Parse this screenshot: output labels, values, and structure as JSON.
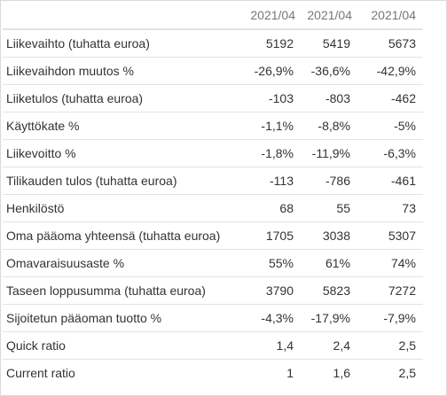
{
  "table": {
    "columns": [
      "2021/04",
      "2021/04",
      "2021/04"
    ],
    "rows": [
      {
        "label": "Liikevaihto (tuhatta euroa)",
        "values": [
          "5192",
          "5419",
          "5673"
        ]
      },
      {
        "label": "Liikevaihdon muutos %",
        "values": [
          "-26,9%",
          "-36,6%",
          "-42,9%"
        ]
      },
      {
        "label": "Liiketulos (tuhatta euroa)",
        "values": [
          "-103",
          "-803",
          "-462"
        ]
      },
      {
        "label": "Käyttökate %",
        "values": [
          "-1,1%",
          "-8,8%",
          "-5%"
        ]
      },
      {
        "label": "Liikevoitto %",
        "values": [
          "-1,8%",
          "-11,9%",
          "-6,3%"
        ]
      },
      {
        "label": "Tilikauden tulos (tuhatta euroa)",
        "values": [
          "-113",
          "-786",
          "-461"
        ]
      },
      {
        "label": "Henkilöstö",
        "values": [
          "68",
          "55",
          "73"
        ]
      },
      {
        "label": "Oma pääoma yhteensä (tuhatta euroa)",
        "values": [
          "1705",
          "3038",
          "5307"
        ]
      },
      {
        "label": "Omavaraisuusaste %",
        "values": [
          "55%",
          "61%",
          "74%"
        ]
      },
      {
        "label": "Taseen loppusumma (tuhatta euroa)",
        "values": [
          "3790",
          "5823",
          "7272"
        ]
      },
      {
        "label": "Sijoitetun pääoman tuotto %",
        "values": [
          "-4,3%",
          "-17,9%",
          "-7,9%"
        ]
      },
      {
        "label": "Quick ratio",
        "values": [
          "1,4",
          "2,4",
          "2,5"
        ]
      },
      {
        "label": "Current ratio",
        "values": [
          "1",
          "1,6",
          "2,5"
        ]
      }
    ]
  }
}
